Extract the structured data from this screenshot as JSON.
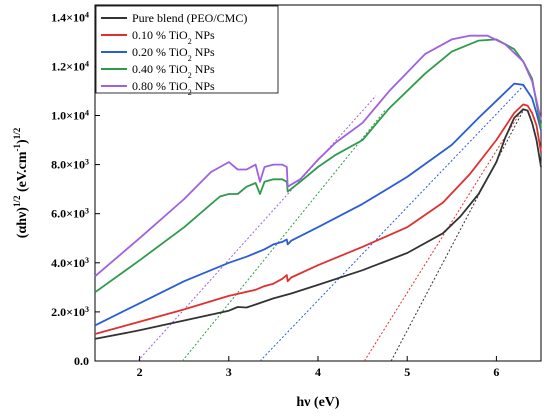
{
  "chart_data": {
    "type": "line",
    "title": "",
    "xlabel": "hν (eV)",
    "ylabel_parts": {
      "base": "(αhν)",
      "sup1": "1/2",
      "mid": " (eV.cm",
      "sup2": "-1",
      "end": ")",
      "sup3": "1/2"
    },
    "xlim": [
      1.5,
      6.5
    ],
    "ylim": [
      0,
      14500
    ],
    "x_ticks": [
      2,
      3,
      4,
      5,
      6
    ],
    "y_ticks": [
      {
        "value": 0,
        "mantissa": "0.0",
        "exp": ""
      },
      {
        "value": 2000,
        "mantissa": "2.0×10",
        "exp": "3"
      },
      {
        "value": 4000,
        "mantissa": "4.0×10",
        "exp": "3"
      },
      {
        "value": 6000,
        "mantissa": "6.0×10",
        "exp": "3"
      },
      {
        "value": 8000,
        "mantissa": "8.0×10",
        "exp": "3"
      },
      {
        "value": 10000,
        "mantissa": "1.0×10",
        "exp": "4"
      },
      {
        "value": 12000,
        "mantissa": "1.2×10",
        "exp": "4"
      },
      {
        "value": 14000,
        "mantissa": "1.4×10",
        "exp": "4"
      }
    ],
    "legend_position": "top-left",
    "series": [
      {
        "name": "Pure blend (PEO/CMC)",
        "legend_main": "Pure blend (PEO/CMC)",
        "legend_sub": "",
        "legend_after": "",
        "color": "#333333",
        "points": [
          [
            1.5,
            900
          ],
          [
            2.0,
            1250
          ],
          [
            2.5,
            1650
          ],
          [
            3.0,
            2050
          ],
          [
            3.1,
            2200
          ],
          [
            3.2,
            2180
          ],
          [
            3.3,
            2300
          ],
          [
            3.5,
            2550
          ],
          [
            3.7,
            2750
          ],
          [
            4.0,
            3100
          ],
          [
            4.5,
            3700
          ],
          [
            5.0,
            4400
          ],
          [
            5.4,
            5200
          ],
          [
            5.6,
            5900
          ],
          [
            5.8,
            6800
          ],
          [
            6.0,
            8100
          ],
          [
            6.1,
            9100
          ],
          [
            6.2,
            9900
          ],
          [
            6.3,
            10250
          ],
          [
            6.35,
            10200
          ],
          [
            6.4,
            9700
          ],
          [
            6.45,
            9000
          ],
          [
            6.5,
            7900
          ]
        ],
        "tangent": [
          [
            4.82,
            0
          ],
          [
            6.3,
            10200
          ]
        ]
      },
      {
        "name": "0.10 % TiO2 NPs",
        "legend_main": "0.10 % TiO",
        "legend_sub": "2",
        "legend_after": " NPs",
        "color": "#e03030",
        "points": [
          [
            1.5,
            1100
          ],
          [
            2.0,
            1600
          ],
          [
            2.5,
            2100
          ],
          [
            3.0,
            2650
          ],
          [
            3.3,
            2900
          ],
          [
            3.4,
            3050
          ],
          [
            3.5,
            3150
          ],
          [
            3.6,
            3350
          ],
          [
            3.65,
            3500
          ],
          [
            3.66,
            3250
          ],
          [
            3.7,
            3400
          ],
          [
            4.0,
            3900
          ],
          [
            4.5,
            4650
          ],
          [
            5.0,
            5450
          ],
          [
            5.4,
            6450
          ],
          [
            5.7,
            7600
          ],
          [
            6.0,
            9000
          ],
          [
            6.2,
            10100
          ],
          [
            6.3,
            10450
          ],
          [
            6.35,
            10400
          ],
          [
            6.4,
            10100
          ],
          [
            6.45,
            9600
          ],
          [
            6.5,
            8500
          ]
        ],
        "tangent": [
          [
            4.52,
            0
          ],
          [
            6.3,
            10300
          ]
        ]
      },
      {
        "name": "0.20 % TiO2 NPs",
        "legend_main": "0.20 % TiO",
        "legend_sub": "2",
        "legend_after": " NPs",
        "color": "#2a5cd6",
        "points": [
          [
            1.5,
            1450
          ],
          [
            2.0,
            2350
          ],
          [
            2.5,
            3250
          ],
          [
            3.0,
            4000
          ],
          [
            3.2,
            4250
          ],
          [
            3.3,
            4400
          ],
          [
            3.4,
            4550
          ],
          [
            3.5,
            4750
          ],
          [
            3.6,
            4850
          ],
          [
            3.65,
            4950
          ],
          [
            3.66,
            4750
          ],
          [
            3.7,
            4900
          ],
          [
            4.0,
            5450
          ],
          [
            4.5,
            6400
          ],
          [
            5.0,
            7500
          ],
          [
            5.5,
            8800
          ],
          [
            5.8,
            9900
          ],
          [
            6.0,
            10600
          ],
          [
            6.2,
            11300
          ],
          [
            6.3,
            11250
          ],
          [
            6.4,
            10700
          ],
          [
            6.45,
            10100
          ],
          [
            6.5,
            9400
          ]
        ],
        "tangent": [
          [
            3.35,
            0
          ],
          [
            6.3,
            11200
          ]
        ]
      },
      {
        "name": "0.40 % TiO2 NPs",
        "legend_main": "0.40 % TiO",
        "legend_sub": "2",
        "legend_after": " NPs",
        "color": "#2e9a4a",
        "points": [
          [
            1.5,
            2800
          ],
          [
            2.0,
            4100
          ],
          [
            2.5,
            5450
          ],
          [
            2.9,
            6700
          ],
          [
            3.0,
            6800
          ],
          [
            3.1,
            6800
          ],
          [
            3.2,
            7100
          ],
          [
            3.3,
            7250
          ],
          [
            3.35,
            6800
          ],
          [
            3.4,
            7300
          ],
          [
            3.5,
            7400
          ],
          [
            3.6,
            7400
          ],
          [
            3.65,
            7300
          ],
          [
            3.66,
            6900
          ],
          [
            3.8,
            7300
          ],
          [
            4.0,
            7900
          ],
          [
            4.2,
            8400
          ],
          [
            4.5,
            9000
          ],
          [
            4.8,
            10300
          ],
          [
            5.2,
            11700
          ],
          [
            5.5,
            12600
          ],
          [
            5.8,
            13050
          ],
          [
            6.0,
            13100
          ],
          [
            6.2,
            12700
          ],
          [
            6.3,
            12200
          ],
          [
            6.4,
            11500
          ],
          [
            6.5,
            9500
          ]
        ],
        "tangent": [
          [
            2.48,
            0
          ],
          [
            4.75,
            10200
          ]
        ]
      },
      {
        "name": "0.80 % TiO2 NPs",
        "legend_main": "0.80 % TiO",
        "legend_sub": "2",
        "legend_after": " NPs",
        "color": "#a060e0",
        "points": [
          [
            1.5,
            3450
          ],
          [
            2.0,
            5000
          ],
          [
            2.5,
            6600
          ],
          [
            2.8,
            7700
          ],
          [
            3.0,
            8100
          ],
          [
            3.1,
            7800
          ],
          [
            3.2,
            7800
          ],
          [
            3.3,
            8000
          ],
          [
            3.35,
            7300
          ],
          [
            3.4,
            7900
          ],
          [
            3.5,
            8000
          ],
          [
            3.6,
            8000
          ],
          [
            3.65,
            7900
          ],
          [
            3.66,
            7100
          ],
          [
            3.8,
            7400
          ],
          [
            4.0,
            8200
          ],
          [
            4.2,
            8900
          ],
          [
            4.5,
            9700
          ],
          [
            4.8,
            11000
          ],
          [
            5.2,
            12500
          ],
          [
            5.5,
            13100
          ],
          [
            5.7,
            13250
          ],
          [
            5.9,
            13250
          ],
          [
            6.1,
            12900
          ],
          [
            6.3,
            12200
          ],
          [
            6.4,
            11400
          ],
          [
            6.5,
            9800
          ]
        ],
        "tangent": [
          [
            1.98,
            0
          ],
          [
            4.65,
            10800
          ]
        ]
      }
    ]
  }
}
